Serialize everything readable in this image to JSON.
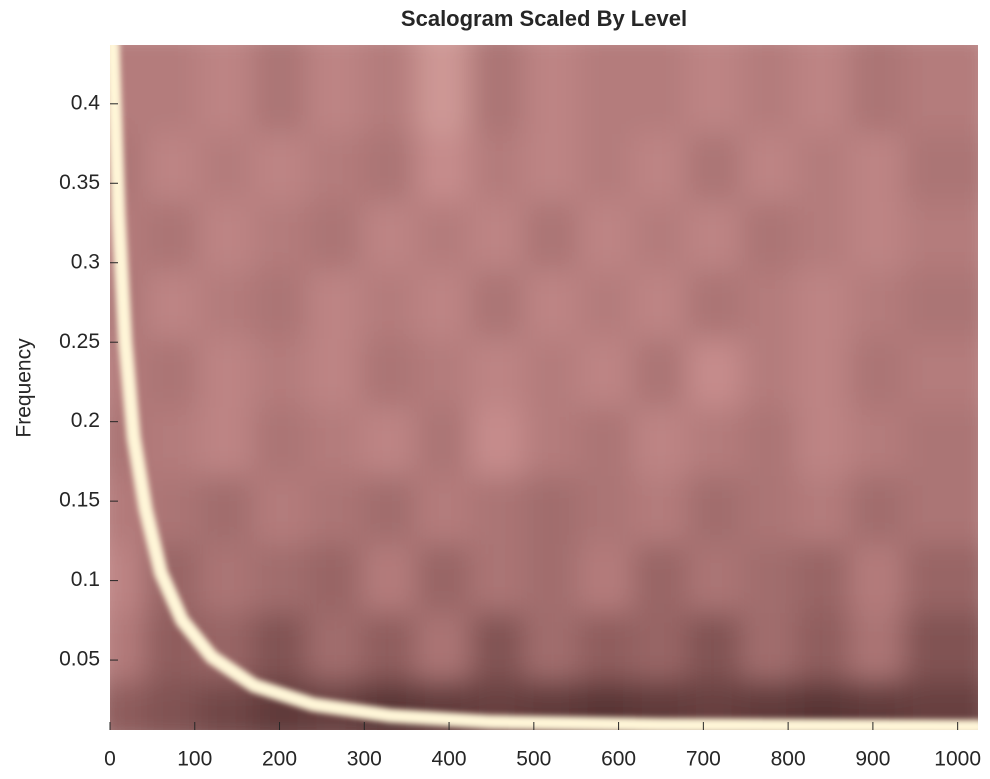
{
  "chart_data": {
    "type": "heatmap",
    "title": "Scalogram Scaled By Level",
    "ylabel": "Frequency",
    "xlim": [
      0,
      1024
    ],
    "ylim": [
      0.006,
      0.437
    ],
    "xticks": [
      0,
      100,
      200,
      300,
      400,
      500,
      600,
      700,
      800,
      900,
      1000
    ],
    "yticks": [
      0.05,
      0.1,
      0.15,
      0.2,
      0.25,
      0.3,
      0.35,
      0.4
    ],
    "colormap": [
      "#1e0a0a",
      "#8c5a5a",
      "#c98f8f",
      "#f7edc8"
    ],
    "z": [
      [
        0.35,
        0.3,
        0.25,
        0.2,
        0.22,
        0.18,
        0.2,
        0.22,
        0.2,
        0.18,
        0.2,
        0.22,
        0.2,
        0.18,
        0.2,
        0.22
      ],
      [
        0.55,
        0.35,
        0.4,
        0.3,
        0.45,
        0.35,
        0.5,
        0.3,
        0.45,
        0.35,
        0.4,
        0.3,
        0.45,
        0.35,
        0.5,
        0.3
      ],
      [
        0.6,
        0.4,
        0.5,
        0.45,
        0.4,
        0.55,
        0.4,
        0.5,
        0.45,
        0.55,
        0.4,
        0.5,
        0.45,
        0.4,
        0.55,
        0.4
      ],
      [
        0.55,
        0.5,
        0.45,
        0.55,
        0.5,
        0.45,
        0.55,
        0.5,
        0.45,
        0.5,
        0.55,
        0.45,
        0.5,
        0.55,
        0.45,
        0.5
      ],
      [
        0.5,
        0.55,
        0.6,
        0.5,
        0.55,
        0.6,
        0.5,
        0.65,
        0.55,
        0.5,
        0.6,
        0.55,
        0.5,
        0.6,
        0.55,
        0.5
      ],
      [
        0.55,
        0.5,
        0.6,
        0.55,
        0.6,
        0.5,
        0.55,
        0.6,
        0.55,
        0.6,
        0.5,
        0.65,
        0.55,
        0.6,
        0.5,
        0.55
      ],
      [
        0.5,
        0.6,
        0.55,
        0.5,
        0.6,
        0.55,
        0.6,
        0.5,
        0.6,
        0.55,
        0.6,
        0.5,
        0.55,
        0.6,
        0.55,
        0.5
      ],
      [
        0.55,
        0.5,
        0.6,
        0.55,
        0.5,
        0.6,
        0.55,
        0.6,
        0.5,
        0.6,
        0.55,
        0.6,
        0.5,
        0.55,
        0.6,
        0.55
      ],
      [
        0.5,
        0.6,
        0.55,
        0.6,
        0.55,
        0.5,
        0.65,
        0.55,
        0.6,
        0.55,
        0.6,
        0.5,
        0.6,
        0.55,
        0.6,
        0.5
      ],
      [
        0.55,
        0.55,
        0.6,
        0.5,
        0.6,
        0.55,
        0.7,
        0.5,
        0.6,
        0.55,
        0.55,
        0.6,
        0.55,
        0.6,
        0.5,
        0.55
      ]
    ],
    "ridge": {
      "color": "#fff6d8",
      "x": [
        3,
        10,
        18,
        28,
        42,
        60,
        85,
        120,
        170,
        240,
        330,
        450,
        650,
        1024
      ],
      "values": [
        0.437,
        0.33,
        0.25,
        0.19,
        0.145,
        0.105,
        0.075,
        0.052,
        0.034,
        0.022,
        0.015,
        0.011,
        0.009,
        0.008
      ]
    }
  }
}
